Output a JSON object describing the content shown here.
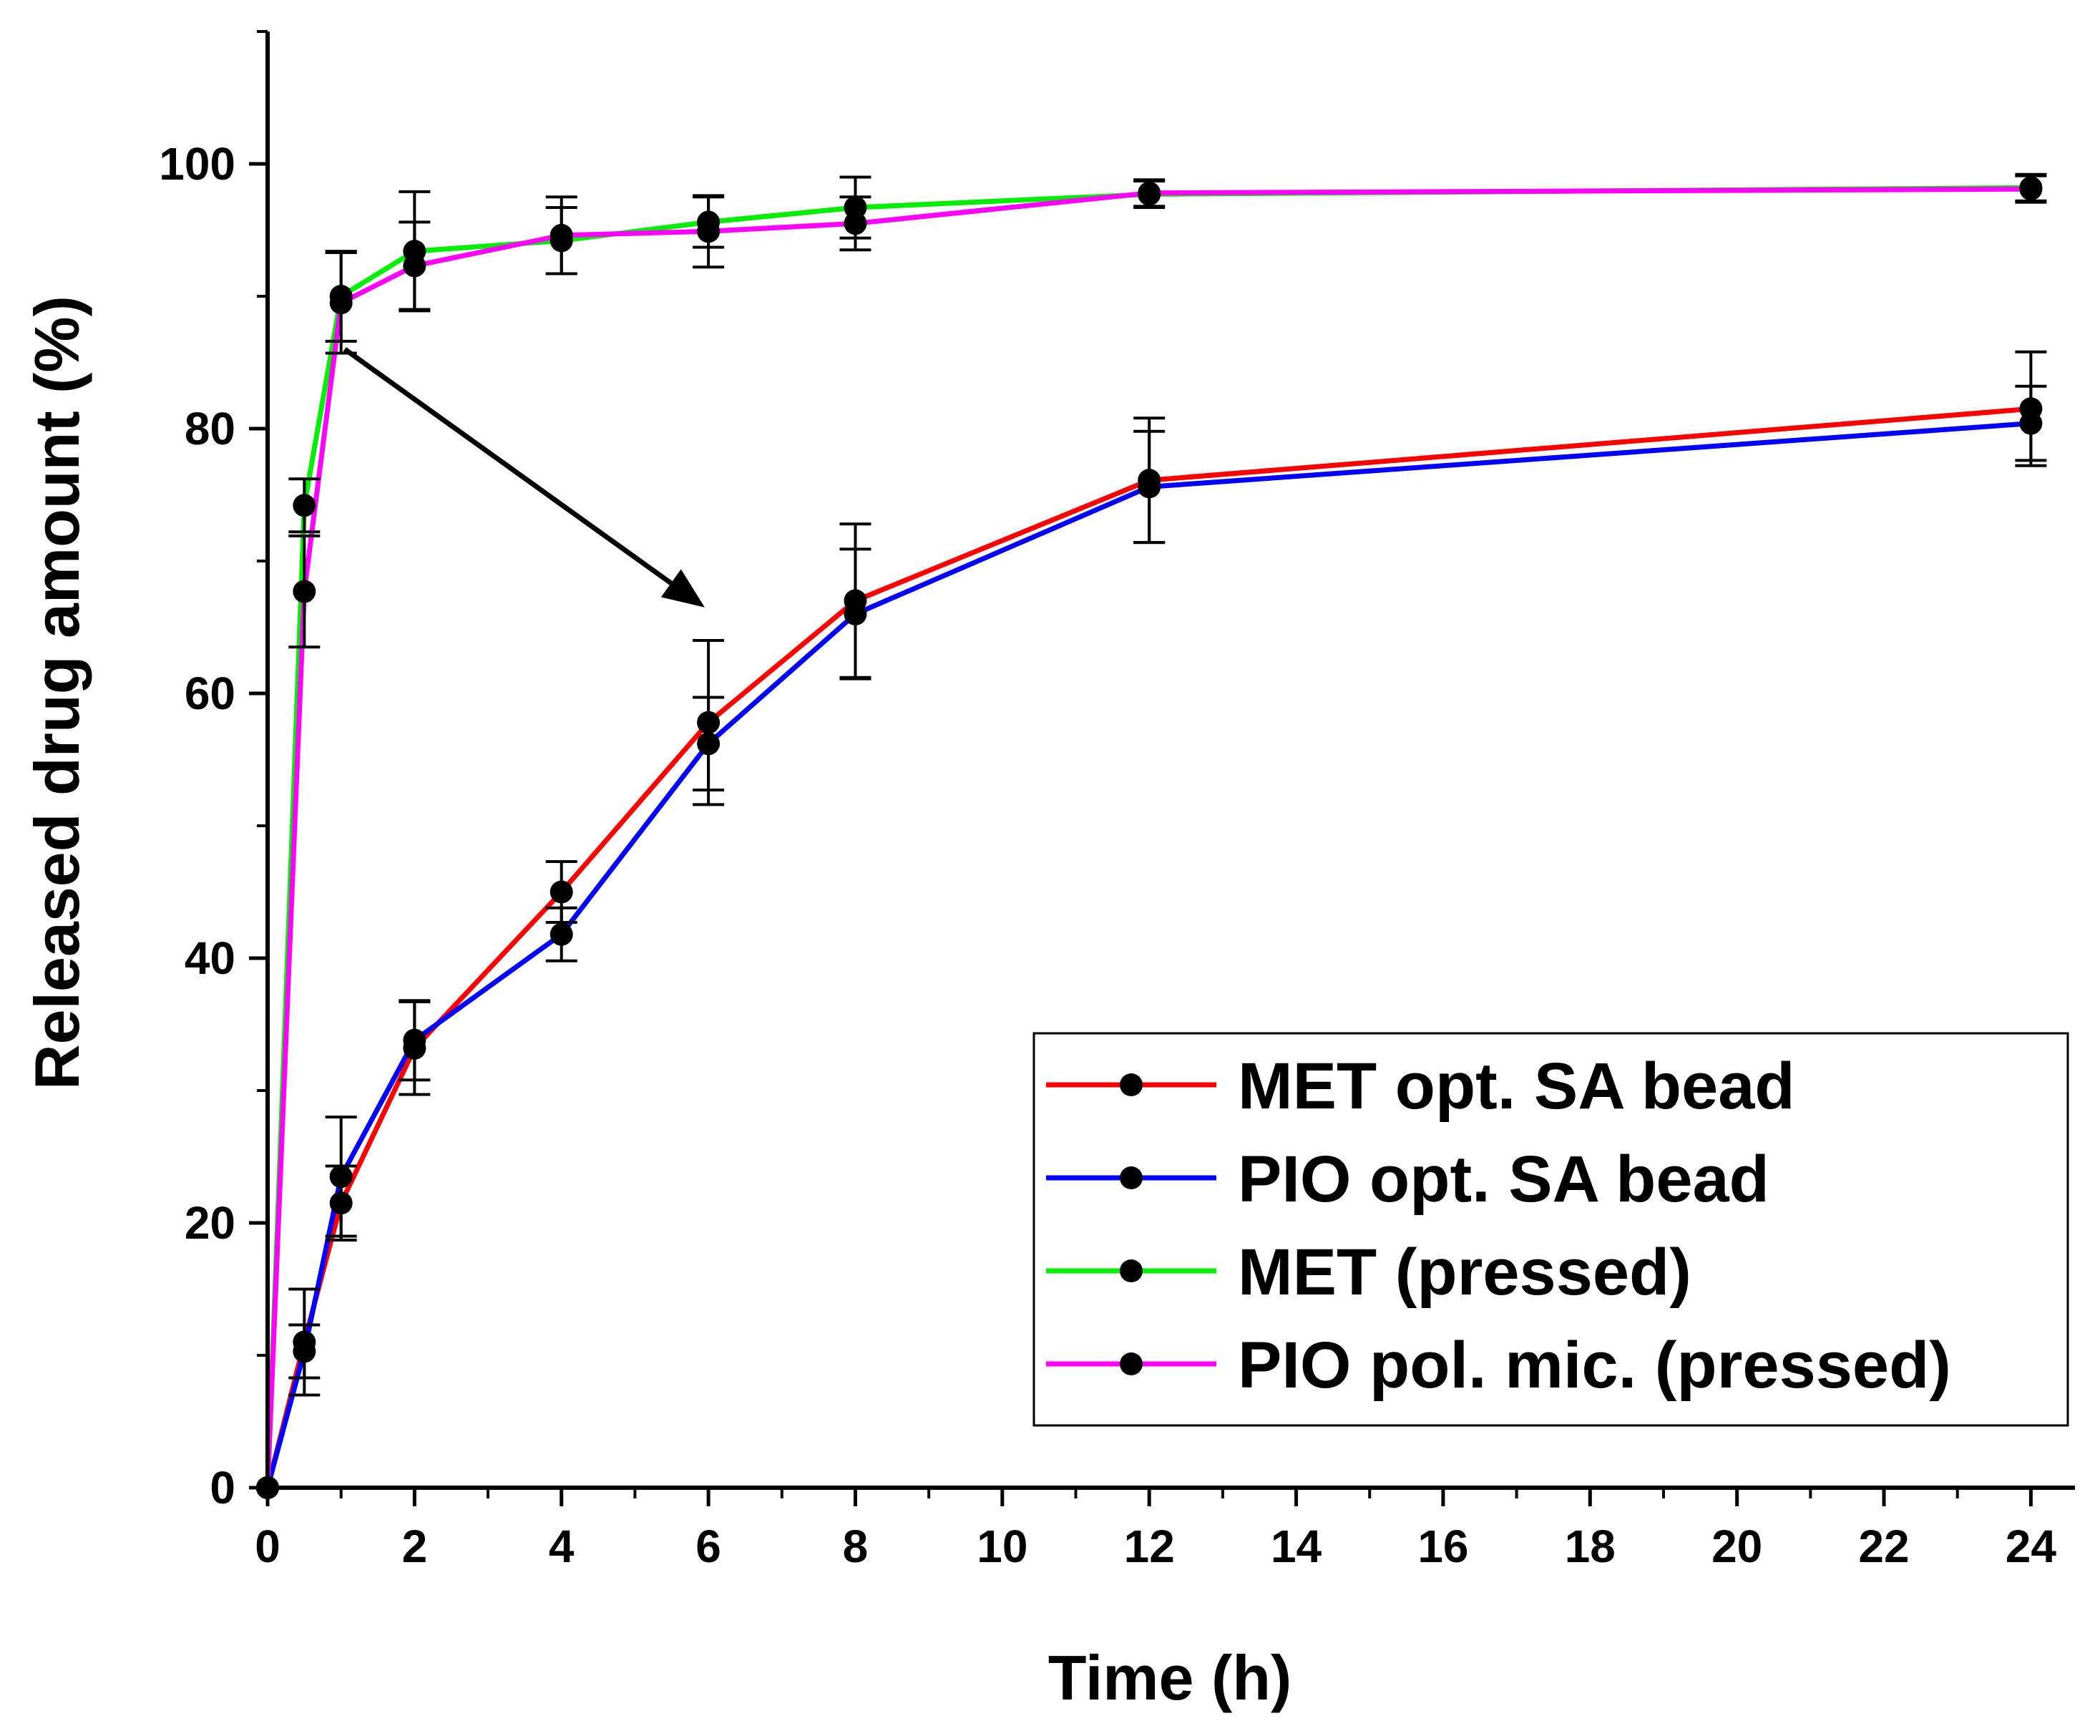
{
  "chart_data": {
    "type": "line",
    "title": "",
    "xlabel": "Time (h)",
    "ylabel": "Released drug amount (%)",
    "xlim": [
      0,
      24.6
    ],
    "ylim": [
      0,
      110
    ],
    "grid": false,
    "legend_position": "bottom-right",
    "x_ticks": [
      0,
      2,
      4,
      6,
      8,
      10,
      12,
      14,
      16,
      18,
      20,
      22,
      24
    ],
    "y_ticks": [
      0,
      20,
      40,
      60,
      80,
      100
    ],
    "x_tick_labels": [
      "0",
      "2",
      "4",
      "6",
      "8",
      "10",
      "12",
      "14",
      "16",
      "18",
      "20",
      "22",
      "24"
    ],
    "y_tick_labels": [
      "0",
      "20",
      "40",
      "60",
      "80",
      "100"
    ],
    "marker_color": "#000000",
    "errorbar_color": "#000000",
    "x": [
      0,
      0.5,
      1,
      2,
      4,
      6,
      8,
      12,
      24
    ],
    "series": [
      {
        "name": "MET opt. SA bead",
        "color": "#ff0000",
        "values": [
          0,
          11.0,
          21.5,
          33.2,
          45.0,
          57.8,
          67.0,
          76.1,
          81.5
        ],
        "errors": [
          0,
          4.0,
          2.8,
          3.5,
          2.3,
          6.2,
          5.8,
          4.7,
          4.3
        ]
      },
      {
        "name": "PIO opt. SA bead",
        "color": "#0000ff",
        "values": [
          0,
          10.3,
          23.5,
          33.8,
          41.8,
          56.2,
          66.0,
          75.6,
          80.4
        ],
        "errors": [
          0,
          2.0,
          4.5,
          3.0,
          2.0,
          3.5,
          4.9,
          4.2,
          2.8
        ]
      },
      {
        "name": "MET (pressed)",
        "color": "#00ee00",
        "values": [
          0,
          74.2,
          90.0,
          93.4,
          94.2,
          95.6,
          96.7,
          97.7,
          98.2
        ],
        "errors": [
          0,
          2.0,
          3.4,
          4.5,
          2.5,
          1.9,
          2.3,
          1.0,
          1.0
        ]
      },
      {
        "name": "PIO pol. mic. (pressed)",
        "color": "#ff00ff",
        "values": [
          0,
          67.7,
          89.5,
          92.3,
          94.6,
          94.9,
          95.5,
          97.8,
          98.1
        ],
        "errors": [
          0,
          4.2,
          3.8,
          3.3,
          2.9,
          2.7,
          2.0,
          1.0,
          1.0
        ]
      }
    ],
    "annotations": [
      {
        "type": "arrow",
        "from": {
          "x": 1.05,
          "y": 86.0
        },
        "to": {
          "x": 5.95,
          "y": 66.5
        },
        "color": "#000000"
      }
    ]
  }
}
